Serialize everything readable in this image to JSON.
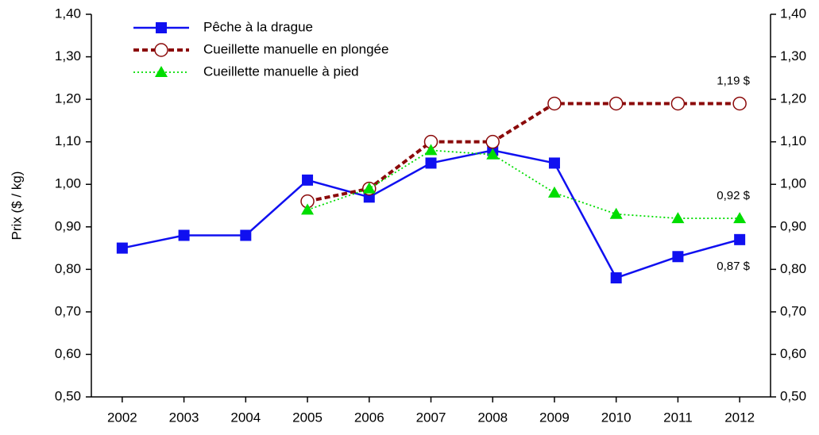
{
  "chart_data": {
    "type": "line",
    "ylabel": "Prix ($ / kg)",
    "categories": [
      "2002",
      "2003",
      "2004",
      "2005",
      "2006",
      "2007",
      "2008",
      "2009",
      "2010",
      "2011",
      "2012"
    ],
    "series": [
      {
        "name": "Pêche à la drague",
        "color": "#1010f0",
        "marker": "square",
        "dash": "solid",
        "values": [
          0.85,
          0.88,
          0.88,
          1.01,
          0.97,
          1.05,
          1.08,
          1.05,
          0.78,
          0.83,
          0.87
        ],
        "value_labels": [
          null,
          null,
          null,
          null,
          null,
          null,
          null,
          null,
          null,
          null,
          "0,87 $"
        ]
      },
      {
        "name": "Cueillette manuelle en plongée",
        "color": "#8b0a0a",
        "marker": "circle",
        "dash": "dashed",
        "values": [
          null,
          null,
          null,
          0.96,
          0.99,
          1.1,
          1.1,
          1.19,
          1.19,
          1.19,
          1.19
        ],
        "value_labels": [
          null,
          null,
          null,
          null,
          null,
          null,
          null,
          null,
          null,
          null,
          "1,19 $"
        ]
      },
      {
        "name": "Cueillette manuelle à pied",
        "color": "#00dd00",
        "marker": "triangle",
        "dash": "dotted",
        "values": [
          null,
          null,
          null,
          0.94,
          0.99,
          1.08,
          1.07,
          0.98,
          0.93,
          0.92,
          0.92
        ],
        "value_labels": [
          null,
          null,
          null,
          null,
          null,
          null,
          null,
          null,
          null,
          null,
          "0,92 $"
        ]
      }
    ],
    "ylim": [
      0.5,
      1.4
    ],
    "yticks": [
      {
        "value": 0.5,
        "label": "0,50"
      },
      {
        "value": 0.6,
        "label": "0,60"
      },
      {
        "value": 0.7,
        "label": "0,70"
      },
      {
        "value": 0.8,
        "label": "0,80"
      },
      {
        "value": 0.9,
        "label": "0,90"
      },
      {
        "value": 1.0,
        "label": "1,00"
      },
      {
        "value": 1.1,
        "label": "1,10"
      },
      {
        "value": 1.2,
        "label": "1,20"
      },
      {
        "value": 1.3,
        "label": "1,30"
      },
      {
        "value": 1.4,
        "label": "1,40"
      }
    ],
    "y2lim": [
      0.5,
      1.4
    ],
    "y2ticks": [
      {
        "value": 0.5,
        "label": "0,50"
      },
      {
        "value": 0.6,
        "label": "0,60"
      },
      {
        "value": 0.7,
        "label": "0,70"
      },
      {
        "value": 0.8,
        "label": "0,80"
      },
      {
        "value": 0.9,
        "label": "0,90"
      },
      {
        "value": 1.0,
        "label": "1,00"
      },
      {
        "value": 1.1,
        "label": "1,10"
      },
      {
        "value": 1.2,
        "label": "1,20"
      },
      {
        "value": 1.3,
        "label": "1,30"
      },
      {
        "value": 1.4,
        "label": "1,40"
      }
    ],
    "legend": "upper left",
    "grid": false
  }
}
